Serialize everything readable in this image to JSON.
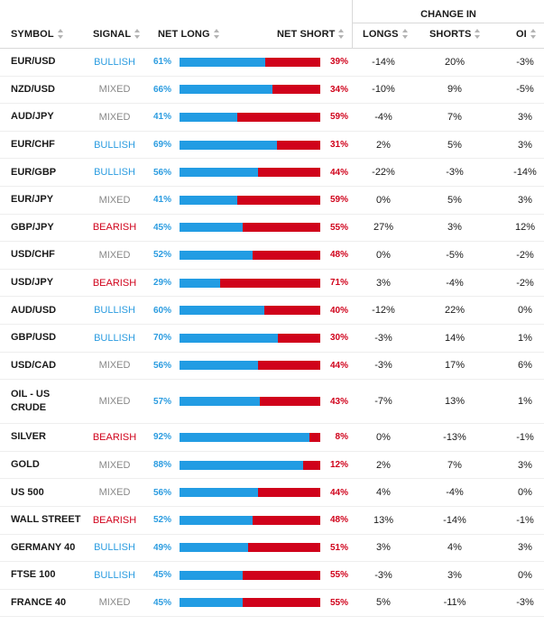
{
  "header": {
    "symbol": "SYMBOL",
    "signal": "SIGNAL",
    "net_long": "NET LONG",
    "net_short": "NET SHORT",
    "change_in": "CHANGE IN",
    "longs": "LONGS",
    "shorts": "SHORTS",
    "oi": "OI"
  },
  "colors": {
    "bullish": "#2b9ce0",
    "bearish": "#d0021b",
    "mixed": "#888888",
    "long_bar": "#229ce3",
    "short_bar": "#d0021b"
  },
  "rows": [
    {
      "symbol": "EUR/USD",
      "signal": "BULLISH",
      "net_long": 0.61,
      "net_long_label": "61%",
      "net_short_label": "39%",
      "longs": "-14%",
      "shorts": "20%",
      "oi": "-3%"
    },
    {
      "symbol": "NZD/USD",
      "signal": "MIXED",
      "net_long": 0.66,
      "net_long_label": "66%",
      "net_short_label": "34%",
      "longs": "-10%",
      "shorts": "9%",
      "oi": "-5%"
    },
    {
      "symbol": "AUD/JPY",
      "signal": "MIXED",
      "net_long": 0.41,
      "net_long_label": "41%",
      "net_short_label": "59%",
      "longs": "-4%",
      "shorts": "7%",
      "oi": "3%"
    },
    {
      "symbol": "EUR/CHF",
      "signal": "BULLISH",
      "net_long": 0.69,
      "net_long_label": "69%",
      "net_short_label": "31%",
      "longs": "2%",
      "shorts": "5%",
      "oi": "3%"
    },
    {
      "symbol": "EUR/GBP",
      "signal": "BULLISH",
      "net_long": 0.56,
      "net_long_label": "56%",
      "net_short_label": "44%",
      "longs": "-22%",
      "shorts": "-3%",
      "oi": "-14%"
    },
    {
      "symbol": "EUR/JPY",
      "signal": "MIXED",
      "net_long": 0.41,
      "net_long_label": "41%",
      "net_short_label": "59%",
      "longs": "0%",
      "shorts": "5%",
      "oi": "3%"
    },
    {
      "symbol": "GBP/JPY",
      "signal": "BEARISH",
      "net_long": 0.45,
      "net_long_label": "45%",
      "net_short_label": "55%",
      "longs": "27%",
      "shorts": "3%",
      "oi": "12%"
    },
    {
      "symbol": "USD/CHF",
      "signal": "MIXED",
      "net_long": 0.52,
      "net_long_label": "52%",
      "net_short_label": "48%",
      "longs": "0%",
      "shorts": "-5%",
      "oi": "-2%"
    },
    {
      "symbol": "USD/JPY",
      "signal": "BEARISH",
      "net_long": 0.29,
      "net_long_label": "29%",
      "net_short_label": "71%",
      "longs": "3%",
      "shorts": "-4%",
      "oi": "-2%"
    },
    {
      "symbol": "AUD/USD",
      "signal": "BULLISH",
      "net_long": 0.6,
      "net_long_label": "60%",
      "net_short_label": "40%",
      "longs": "-12%",
      "shorts": "22%",
      "oi": "0%"
    },
    {
      "symbol": "GBP/USD",
      "signal": "BULLISH",
      "net_long": 0.7,
      "net_long_label": "70%",
      "net_short_label": "30%",
      "longs": "-3%",
      "shorts": "14%",
      "oi": "1%"
    },
    {
      "symbol": "USD/CAD",
      "signal": "MIXED",
      "net_long": 0.56,
      "net_long_label": "56%",
      "net_short_label": "44%",
      "longs": "-3%",
      "shorts": "17%",
      "oi": "6%"
    },
    {
      "symbol": "OIL - US CRUDE",
      "signal": "MIXED",
      "net_long": 0.57,
      "net_long_label": "57%",
      "net_short_label": "43%",
      "longs": "-7%",
      "shorts": "13%",
      "oi": "1%",
      "tall": true
    },
    {
      "symbol": "SILVER",
      "signal": "BEARISH",
      "net_long": 0.92,
      "net_long_label": "92%",
      "net_short_label": "8%",
      "longs": "0%",
      "shorts": "-13%",
      "oi": "-1%"
    },
    {
      "symbol": "GOLD",
      "signal": "MIXED",
      "net_long": 0.88,
      "net_long_label": "88%",
      "net_short_label": "12%",
      "longs": "2%",
      "shorts": "7%",
      "oi": "3%"
    },
    {
      "symbol": "US 500",
      "signal": "MIXED",
      "net_long": 0.56,
      "net_long_label": "56%",
      "net_short_label": "44%",
      "longs": "4%",
      "shorts": "-4%",
      "oi": "0%"
    },
    {
      "symbol": "WALL STREET",
      "signal": "BEARISH",
      "net_long": 0.52,
      "net_long_label": "52%",
      "net_short_label": "48%",
      "longs": "13%",
      "shorts": "-14%",
      "oi": "-1%"
    },
    {
      "symbol": "GERMANY 40",
      "signal": "BULLISH",
      "net_long": 0.49,
      "net_long_label": "49%",
      "net_short_label": "51%",
      "longs": "3%",
      "shorts": "4%",
      "oi": "3%"
    },
    {
      "symbol": "FTSE 100",
      "signal": "BULLISH",
      "net_long": 0.45,
      "net_long_label": "45%",
      "net_short_label": "55%",
      "longs": "-3%",
      "shorts": "3%",
      "oi": "0%"
    },
    {
      "symbol": "FRANCE 40",
      "signal": "MIXED",
      "net_long": 0.45,
      "net_long_label": "45%",
      "net_short_label": "55%",
      "longs": "5%",
      "shorts": "-11%",
      "oi": "-3%"
    }
  ]
}
